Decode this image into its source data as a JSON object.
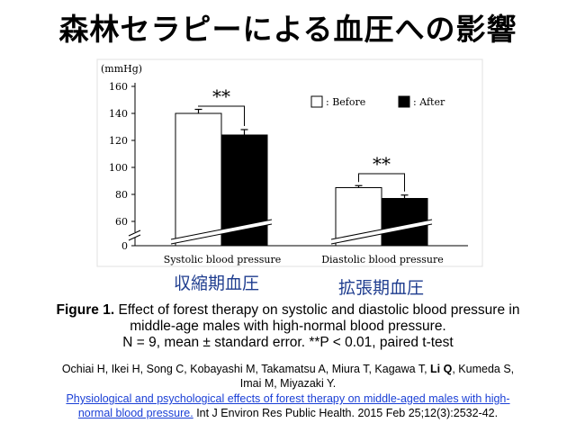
{
  "slide": {
    "title": "森林セラピーによる血圧への影響",
    "jp_label_systolic": "収縮期血圧",
    "jp_label_diastolic": "拡張期血圧"
  },
  "chart_data": {
    "type": "bar",
    "unit_label": "(mmHg)",
    "categories": [
      "Systolic blood pressure",
      "Diastolic blood pressure"
    ],
    "series": [
      {
        "name": ": Before",
        "values": [
          140,
          85
        ],
        "errors": [
          3,
          1.5
        ],
        "color": "#ffffff"
      },
      {
        "name": ": After",
        "values": [
          124,
          77
        ],
        "errors": [
          4,
          2.5
        ],
        "color": "#000000"
      }
    ],
    "y_ticks": [
      "0",
      "60",
      "80",
      "100",
      "120",
      "140",
      "160"
    ],
    "ylim": [
      50,
      160
    ],
    "axis_break": true,
    "significance": [
      "**",
      "**"
    ],
    "legend_position": "top-right"
  },
  "caption": {
    "figure_label": "Figure 1.",
    "line1": " Effect of forest therapy on systolic and diastolic blood pressure in",
    "line2": "middle-age males with high-normal blood pressure.",
    "line3": "N = 9, mean ± standard error. **P < 0.01, paired t-test"
  },
  "reference": {
    "authors_part1": "Ochiai H, Ikei H, Song C, Kobayashi M, Takamatsu A, Miura T, Kagawa T, ",
    "authors_bold": "Li Q",
    "authors_part2": ", Kumeda S,",
    "authors_line2": "Imai M, Miyazaki Y.",
    "link_line1": "Physiological and psychological effects of forest therapy on middle-aged males with high-",
    "link_line2": "normal blood pressure.",
    "citation": "  Int J Environ Res Public Health. 2015 Feb 25;12(3):2532-42."
  }
}
